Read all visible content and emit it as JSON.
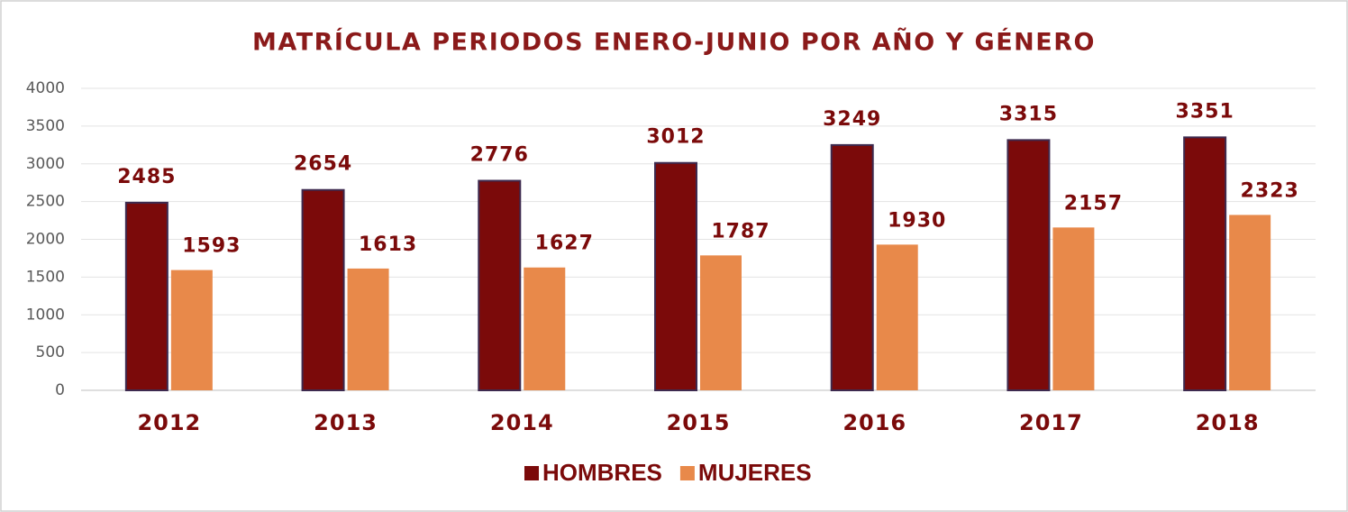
{
  "chart_data": {
    "type": "bar",
    "title": "MATRÍCULA PERIODOS ENERO-JUNIO POR AÑO Y GÉNERO",
    "categories": [
      "2012",
      "2013",
      "2014",
      "2015",
      "2016",
      "2017",
      "2018"
    ],
    "series": [
      {
        "name": "HOMBRES",
        "color": "#7b0a0a",
        "values": [
          2485,
          2654,
          2776,
          3012,
          3249,
          3315,
          3351
        ]
      },
      {
        "name": "MUJERES",
        "color": "#e8894a",
        "values": [
          1593,
          1613,
          1627,
          1787,
          1930,
          2157,
          2323
        ]
      }
    ],
    "ylim": [
      0,
      4000
    ],
    "yticks": [
      0,
      500,
      1000,
      1500,
      2000,
      2500,
      3000,
      3500,
      4000
    ],
    "grid": true,
    "legend": "bottom"
  }
}
